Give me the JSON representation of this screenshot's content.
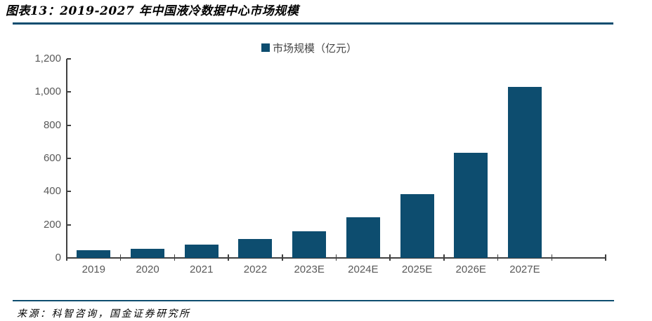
{
  "header": {
    "title": "图表13：2019-2027 年中国液冷数据中心市场规模"
  },
  "legend": {
    "label": "市场规模（亿元）"
  },
  "footer": {
    "source": "来源：科智咨询，国金证券研究所"
  },
  "colors": {
    "bar": "#0D4D6F",
    "rule": "#0D4D6F",
    "axis": "#404040",
    "tick_label": "#595959"
  },
  "chart_data": {
    "type": "bar",
    "title": "图表13：2019-2027 年中国液冷数据中心市场规模",
    "series_name": "市场规模（亿元）",
    "categories": [
      "2019",
      "2020",
      "2021",
      "2022",
      "2023E",
      "2024E",
      "2025E",
      "2026E",
      "2027E"
    ],
    "values": [
      46,
      57,
      80,
      112,
      162,
      244,
      386,
      632,
      1030
    ],
    "xlabel": "",
    "ylabel": "",
    "ylim": [
      0,
      1200
    ],
    "ytick_interval": 200,
    "ytick_labels": [
      "0",
      "200",
      "400",
      "600",
      "800",
      "1,000",
      "1,200"
    ],
    "grid": false,
    "legend_position": "top-center",
    "source": "来源：科智咨询，国金证券研究所"
  }
}
